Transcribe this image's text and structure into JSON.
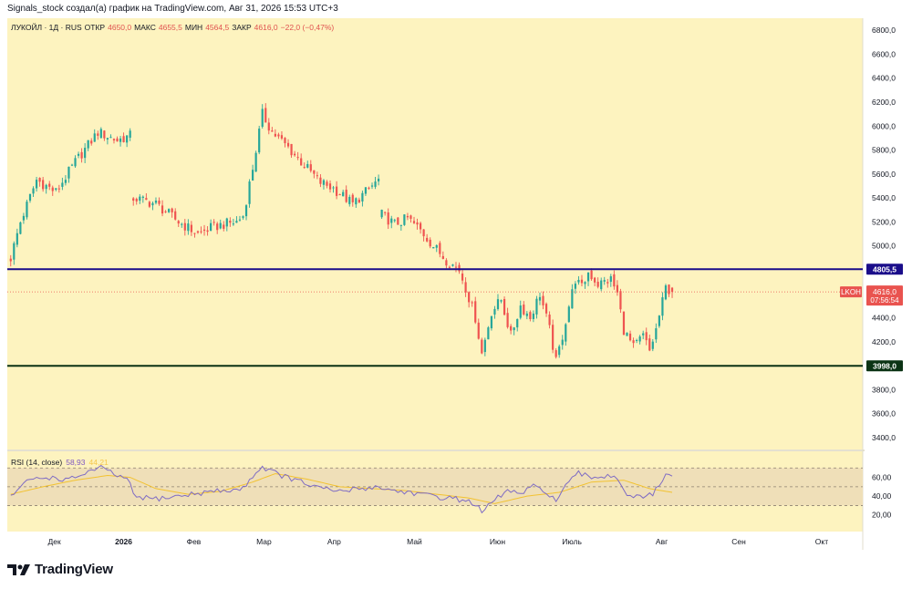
{
  "header_text": "Signals_stock создал(а) график на TradingView.com, Авг 31, 2026 15:53 UTC+3",
  "legend": {
    "symbol": "ЛУКОЙЛ · 1Д · RUS",
    "open_label": "ОТКР",
    "open": "4650,0",
    "high_label": "МАКС",
    "high": "4655,5",
    "low_label": "МИН",
    "low": "4564,5",
    "close_label": "ЗАКР",
    "close": "4616,0",
    "change": "−22,0 (−0,47%)"
  },
  "rsi_legend": {
    "name": "RSI (14, close)",
    "value": "58,93",
    "ma": "44,21"
  },
  "brand": "TradingView",
  "colors": {
    "background": "#fdf3bf",
    "up": "#26a69a",
    "down": "#ef5350",
    "resistance": "#1a0d8a",
    "support": "#0b3314",
    "rsi": "#7e6bc4",
    "rsi_ma": "#f2c230",
    "price_tag": "#e9534f"
  },
  "chart_data": [
    {
      "type": "candlestick",
      "price_axis": {
        "min": 3300,
        "max": 6900,
        "ticks": [
          "6800,0",
          "6600,0",
          "6400,0",
          "6200,0",
          "6000,0",
          "5800,0",
          "5600,0",
          "5400,0",
          "5200,0",
          "5000,0",
          "4600,0",
          "4400,0",
          "4200,0",
          "3800,0",
          "3600,0",
          "3400,0"
        ]
      },
      "time_axis": [
        "Дек",
        "2026",
        "Фев",
        "Мар",
        "Апр",
        "Май",
        "Июн",
        "Июль",
        "Авг",
        "Сен",
        "Окт"
      ],
      "path": [
        [
          0,
          4900
        ],
        [
          3,
          5200
        ],
        [
          8,
          5550
        ],
        [
          14,
          5450
        ],
        [
          20,
          5700
        ],
        [
          27,
          5950
        ],
        [
          33,
          5880
        ],
        [
          37,
          5920
        ],
        [
          38,
          5400
        ],
        [
          45,
          5350
        ],
        [
          52,
          5200
        ],
        [
          58,
          5100
        ],
        [
          62,
          5150
        ],
        [
          66,
          5180
        ],
        [
          70,
          5200
        ],
        [
          72,
          5250
        ],
        [
          75,
          5650
        ],
        [
          78,
          6100
        ],
        [
          81,
          5950
        ],
        [
          86,
          5820
        ],
        [
          90,
          5700
        ],
        [
          96,
          5530
        ],
        [
          100,
          5480
        ],
        [
          106,
          5350
        ],
        [
          110,
          5450
        ],
        [
          114,
          5550
        ],
        [
          115,
          5260
        ],
        [
          119,
          5180
        ],
        [
          123,
          5230
        ],
        [
          127,
          5130
        ],
        [
          131,
          5000
        ],
        [
          135,
          4880
        ],
        [
          139,
          4800
        ],
        [
          141,
          4650
        ],
        [
          144,
          4400
        ],
        [
          146,
          4100
        ],
        [
          149,
          4450
        ],
        [
          152,
          4550
        ],
        [
          155,
          4250
        ],
        [
          158,
          4500
        ],
        [
          161,
          4400
        ],
        [
          164,
          4600
        ],
        [
          167,
          4300
        ],
        [
          169,
          4030
        ],
        [
          171,
          4250
        ],
        [
          173,
          4500
        ],
        [
          175,
          4720
        ],
        [
          177,
          4650
        ],
        [
          179,
          4780
        ],
        [
          182,
          4680
        ],
        [
          186,
          4720
        ],
        [
          188,
          4600
        ],
        [
          190,
          4300
        ],
        [
          193,
          4150
        ],
        [
          196,
          4250
        ],
        [
          198,
          4120
        ],
        [
          200,
          4300
        ],
        [
          203,
          4650
        ],
        [
          205,
          4616
        ]
      ],
      "last": {
        "open": 4650,
        "high": 4655.5,
        "low": 4564.5,
        "close": 4616
      },
      "levels": [
        {
          "name": "resistance",
          "value": 4805.5,
          "label": "4805,5"
        },
        {
          "name": "support",
          "value": 3998.0,
          "label": "3998,0"
        }
      ],
      "price_tag": {
        "symbol": "LKOH",
        "price": "4616,0",
        "countdown": "07:56:54"
      }
    },
    {
      "type": "line",
      "name": "RSI (14, close)",
      "ylim": [
        0,
        100
      ],
      "ticks": [
        "60,00",
        "40,00",
        "20,00"
      ],
      "band": [
        30,
        70
      ],
      "mid": 50,
      "path": [
        [
          0,
          40
        ],
        [
          6,
          58
        ],
        [
          12,
          60
        ],
        [
          18,
          57
        ],
        [
          24,
          66
        ],
        [
          28,
          70
        ],
        [
          33,
          62
        ],
        [
          37,
          55
        ],
        [
          38,
          40
        ],
        [
          44,
          37
        ],
        [
          50,
          39
        ],
        [
          56,
          42
        ],
        [
          62,
          45
        ],
        [
          68,
          46
        ],
        [
          72,
          48
        ],
        [
          75,
          62
        ],
        [
          78,
          71
        ],
        [
          80,
          68
        ],
        [
          84,
          62
        ],
        [
          90,
          55
        ],
        [
          96,
          48
        ],
        [
          102,
          45
        ],
        [
          108,
          48
        ],
        [
          114,
          50
        ],
        [
          118,
          46
        ],
        [
          124,
          44
        ],
        [
          130,
          40
        ],
        [
          136,
          38
        ],
        [
          140,
          36
        ],
        [
          144,
          32
        ],
        [
          146,
          22
        ],
        [
          150,
          36
        ],
        [
          154,
          46
        ],
        [
          158,
          42
        ],
        [
          162,
          50
        ],
        [
          166,
          45
        ],
        [
          169,
          35
        ],
        [
          173,
          55
        ],
        [
          176,
          64
        ],
        [
          180,
          60
        ],
        [
          185,
          62
        ],
        [
          188,
          60
        ],
        [
          191,
          42
        ],
        [
          195,
          38
        ],
        [
          199,
          42
        ],
        [
          203,
          62
        ],
        [
          205,
          59
        ]
      ],
      "ma_path": [
        [
          0,
          42
        ],
        [
          10,
          50
        ],
        [
          20,
          57
        ],
        [
          30,
          62
        ],
        [
          37,
          60
        ],
        [
          45,
          48
        ],
        [
          55,
          42
        ],
        [
          65,
          45
        ],
        [
          75,
          55
        ],
        [
          82,
          64
        ],
        [
          92,
          58
        ],
        [
          102,
          50
        ],
        [
          112,
          48
        ],
        [
          122,
          46
        ],
        [
          132,
          42
        ],
        [
          142,
          38
        ],
        [
          150,
          32
        ],
        [
          160,
          40
        ],
        [
          170,
          44
        ],
        [
          180,
          55
        ],
        [
          190,
          57
        ],
        [
          198,
          48
        ],
        [
          205,
          44
        ]
      ]
    }
  ]
}
